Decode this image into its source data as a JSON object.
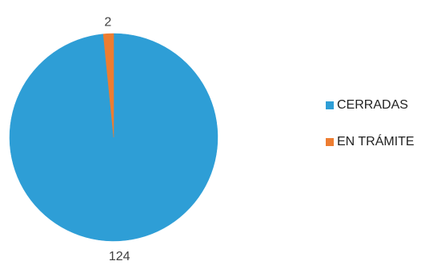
{
  "chart_data": {
    "type": "pie",
    "slices": [
      {
        "label": "CERRADAS",
        "value": 124,
        "color": "#2E9ED6"
      },
      {
        "label": "EN TRÁMITE",
        "value": 2,
        "color": "#ED7D31"
      }
    ],
    "start_angle_deg": 0,
    "direction": "clockwise",
    "legend_position": "right"
  }
}
